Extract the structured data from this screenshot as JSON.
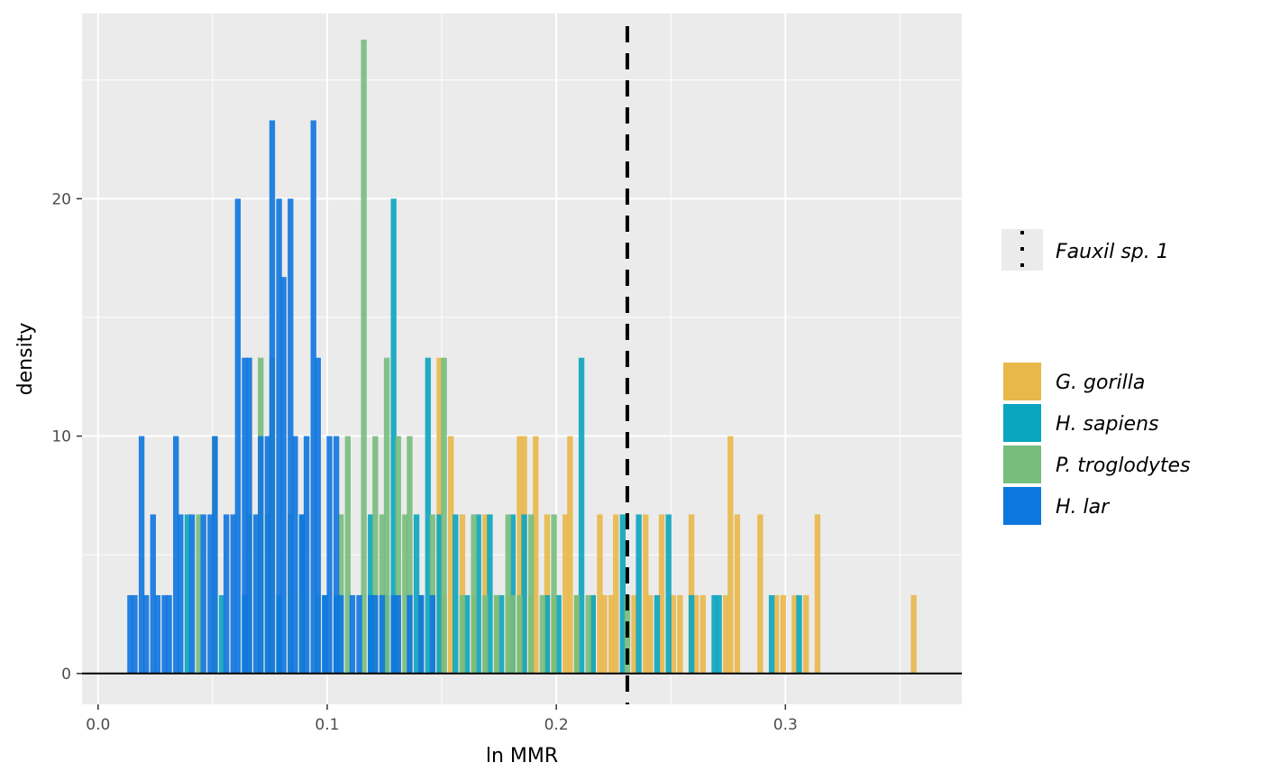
{
  "chart_data": {
    "type": "histogram",
    "xlabel": "ln MMR",
    "ylabel": "density",
    "xlim": [
      -0.007,
      0.377
    ],
    "ylim": [
      -1.3,
      27.8
    ],
    "x_ticks": [
      0.0,
      0.1,
      0.2,
      0.3
    ],
    "x_tick_labels": [
      "0.0",
      "0.1",
      "0.2",
      "0.3"
    ],
    "y_ticks": [
      0,
      10,
      20
    ],
    "y_tick_labels": [
      "0",
      "10",
      "20"
    ],
    "grid": true,
    "bin_width": 0.0025,
    "reference_line": {
      "label": "Fauxil sp. 1",
      "x": 0.231,
      "style": "dashed",
      "color": "#000000"
    },
    "legend_position": "right",
    "series": [
      {
        "name": "G. gorilla",
        "color": "#E8B84A",
        "points": [
          [
            0.149,
            13.3
          ],
          [
            0.151,
            3.3
          ],
          [
            0.154,
            10
          ],
          [
            0.159,
            6.7
          ],
          [
            0.164,
            3.3
          ],
          [
            0.169,
            6.7
          ],
          [
            0.174,
            3.3
          ],
          [
            0.179,
            3.3
          ],
          [
            0.184,
            10
          ],
          [
            0.186,
            10
          ],
          [
            0.189,
            3.3
          ],
          [
            0.191,
            10
          ],
          [
            0.196,
            6.7
          ],
          [
            0.199,
            3.3
          ],
          [
            0.204,
            6.7
          ],
          [
            0.206,
            10
          ],
          [
            0.209,
            3.3
          ],
          [
            0.216,
            3.3
          ],
          [
            0.219,
            6.7
          ],
          [
            0.221,
            3.3
          ],
          [
            0.224,
            3.3
          ],
          [
            0.226,
            6.7
          ],
          [
            0.234,
            3.3
          ],
          [
            0.239,
            6.7
          ],
          [
            0.241,
            3.3
          ],
          [
            0.246,
            6.7
          ],
          [
            0.251,
            3.3
          ],
          [
            0.254,
            3.3
          ],
          [
            0.259,
            6.7
          ],
          [
            0.261,
            3.3
          ],
          [
            0.264,
            3.3
          ],
          [
            0.274,
            3.3
          ],
          [
            0.276,
            10
          ],
          [
            0.279,
            6.7
          ],
          [
            0.289,
            6.7
          ],
          [
            0.296,
            3.3
          ],
          [
            0.299,
            3.3
          ],
          [
            0.304,
            3.3
          ],
          [
            0.309,
            3.3
          ],
          [
            0.314,
            6.7
          ],
          [
            0.356,
            3.3
          ]
        ]
      },
      {
        "name": "H. sapiens",
        "color": "#0AA5BF",
        "points": [
          [
            0.039,
            6.7
          ],
          [
            0.054,
            3.3
          ],
          [
            0.064,
            3.3
          ],
          [
            0.079,
            3.3
          ],
          [
            0.089,
            6.7
          ],
          [
            0.099,
            3.3
          ],
          [
            0.104,
            3.3
          ],
          [
            0.119,
            6.7
          ],
          [
            0.126,
            3.3
          ],
          [
            0.129,
            20
          ],
          [
            0.139,
            6.7
          ],
          [
            0.144,
            13.3
          ],
          [
            0.149,
            6.7
          ],
          [
            0.156,
            6.7
          ],
          [
            0.161,
            3.3
          ],
          [
            0.166,
            6.7
          ],
          [
            0.171,
            6.7
          ],
          [
            0.176,
            3.3
          ],
          [
            0.181,
            6.7
          ],
          [
            0.186,
            6.7
          ],
          [
            0.196,
            3.3
          ],
          [
            0.201,
            3.3
          ],
          [
            0.211,
            13.3
          ],
          [
            0.216,
            3.3
          ],
          [
            0.229,
            6.7
          ],
          [
            0.236,
            6.7
          ],
          [
            0.244,
            3.3
          ],
          [
            0.249,
            6.7
          ],
          [
            0.259,
            3.3
          ],
          [
            0.269,
            3.3
          ],
          [
            0.271,
            3.3
          ],
          [
            0.294,
            3.3
          ],
          [
            0.306,
            3.3
          ]
        ]
      },
      {
        "name": "P. troglodytes",
        "color": "#77BD7C",
        "points": [
          [
            0.044,
            6.7
          ],
          [
            0.051,
            10
          ],
          [
            0.066,
            6.7
          ],
          [
            0.071,
            13.3
          ],
          [
            0.074,
            6.7
          ],
          [
            0.076,
            13.3
          ],
          [
            0.084,
            6.7
          ],
          [
            0.089,
            3.3
          ],
          [
            0.096,
            3.3
          ],
          [
            0.106,
            6.7
          ],
          [
            0.109,
            10
          ],
          [
            0.116,
            26.7
          ],
          [
            0.121,
            10
          ],
          [
            0.124,
            6.7
          ],
          [
            0.126,
            13.3
          ],
          [
            0.131,
            10
          ],
          [
            0.134,
            6.7
          ],
          [
            0.136,
            10
          ],
          [
            0.141,
            3.3
          ],
          [
            0.146,
            6.7
          ],
          [
            0.151,
            13.3
          ],
          [
            0.159,
            3.3
          ],
          [
            0.164,
            6.7
          ],
          [
            0.169,
            3.3
          ],
          [
            0.174,
            3.3
          ],
          [
            0.179,
            6.7
          ],
          [
            0.181,
            3.3
          ],
          [
            0.184,
            3.3
          ],
          [
            0.189,
            6.7
          ],
          [
            0.194,
            3.3
          ],
          [
            0.199,
            6.7
          ],
          [
            0.209,
            3.3
          ],
          [
            0.214,
            3.3
          ],
          [
            0.231,
            3.3
          ]
        ]
      },
      {
        "name": "H. lar",
        "color": "#0E76DF",
        "points": [
          [
            0.014,
            3.3
          ],
          [
            0.016,
            3.3
          ],
          [
            0.019,
            10
          ],
          [
            0.021,
            3.3
          ],
          [
            0.024,
            6.7
          ],
          [
            0.026,
            3.3
          ],
          [
            0.029,
            3.3
          ],
          [
            0.031,
            3.3
          ],
          [
            0.034,
            10
          ],
          [
            0.036,
            6.7
          ],
          [
            0.041,
            6.7
          ],
          [
            0.046,
            6.7
          ],
          [
            0.049,
            6.7
          ],
          [
            0.051,
            10
          ],
          [
            0.056,
            6.7
          ],
          [
            0.059,
            6.7
          ],
          [
            0.061,
            20
          ],
          [
            0.064,
            13.3
          ],
          [
            0.066,
            13.3
          ],
          [
            0.069,
            6.7
          ],
          [
            0.071,
            10
          ],
          [
            0.074,
            10
          ],
          [
            0.076,
            23.3
          ],
          [
            0.079,
            20
          ],
          [
            0.081,
            16.7
          ],
          [
            0.084,
            20
          ],
          [
            0.086,
            10
          ],
          [
            0.089,
            6.7
          ],
          [
            0.091,
            10
          ],
          [
            0.094,
            23.3
          ],
          [
            0.096,
            13.3
          ],
          [
            0.099,
            3.3
          ],
          [
            0.101,
            10
          ],
          [
            0.104,
            10
          ],
          [
            0.106,
            3.3
          ],
          [
            0.111,
            3.3
          ],
          [
            0.114,
            3.3
          ],
          [
            0.119,
            3.3
          ],
          [
            0.121,
            3.3
          ],
          [
            0.124,
            3.3
          ],
          [
            0.129,
            3.3
          ],
          [
            0.131,
            3.3
          ],
          [
            0.136,
            3.3
          ],
          [
            0.141,
            3.3
          ],
          [
            0.146,
            3.3
          ]
        ]
      }
    ]
  }
}
